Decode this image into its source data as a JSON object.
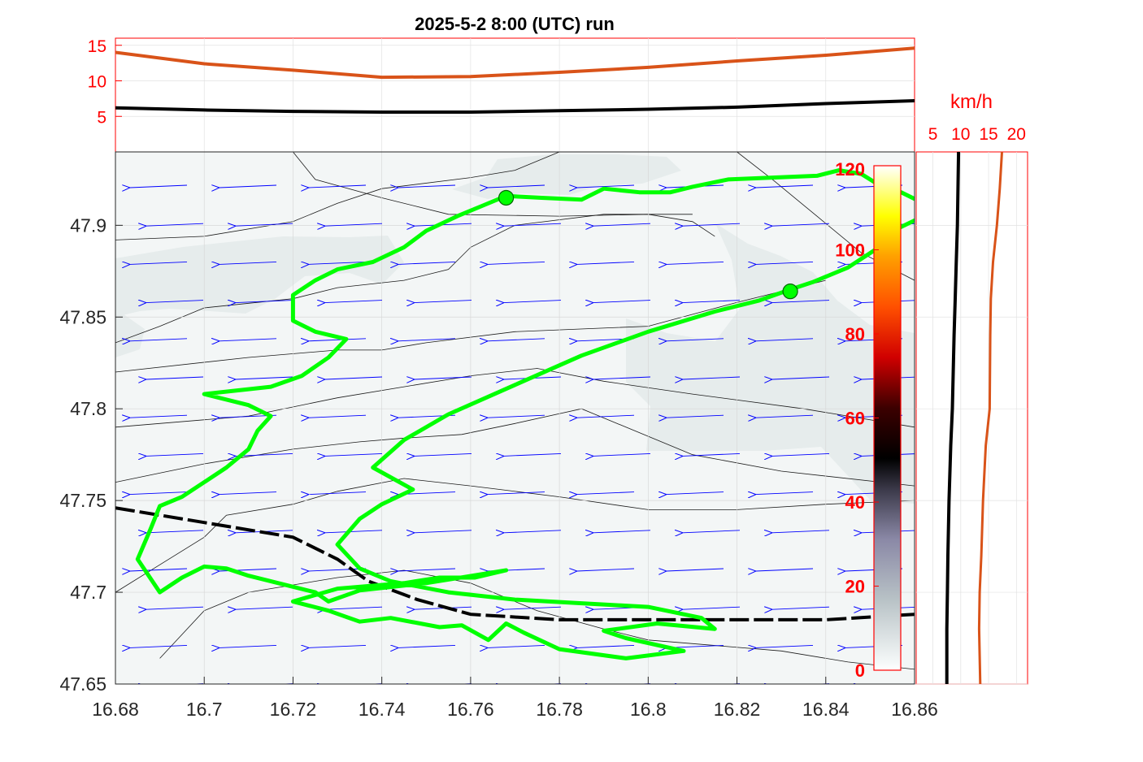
{
  "title": "2025-5-2  8:00 (UTC) run",
  "colors": {
    "track": "#00ff00",
    "arrows": "#0000ff",
    "speed_line": "#000000",
    "gust_line": "#d95319",
    "axis_red": "#ff0000"
  },
  "chart_data": [
    {
      "id": "wind_timeseries_top",
      "type": "line",
      "ylim": [
        0,
        16
      ],
      "yticks": [
        "5",
        "10",
        "15"
      ],
      "x": [
        16.68,
        16.7,
        16.72,
        16.74,
        16.76,
        16.78,
        16.8,
        16.82,
        16.84,
        16.86
      ],
      "series": [
        {
          "color": "#d95319",
          "values": [
            14.0,
            12.4,
            11.5,
            10.5,
            10.6,
            11.2,
            11.9,
            12.8,
            13.6,
            14.6
          ]
        },
        {
          "color": "#000000",
          "values": [
            6.2,
            5.9,
            5.7,
            5.6,
            5.6,
            5.8,
            6.0,
            6.3,
            6.8,
            7.2
          ]
        }
      ]
    },
    {
      "id": "map_main",
      "type": "line",
      "xlim": [
        16.68,
        16.86
      ],
      "ylim": [
        47.65,
        47.94
      ],
      "xticks": [
        "16.68",
        "16.7",
        "16.72",
        "16.74",
        "16.76",
        "16.78",
        "16.8",
        "16.82",
        "16.84",
        "16.86"
      ],
      "yticks": [
        "47.65",
        "47.7",
        "47.75",
        "47.8",
        "47.85",
        "47.9"
      ],
      "track": [
        [
          16.768,
          47.916
        ],
        [
          16.776,
          47.915
        ],
        [
          16.785,
          47.914
        ],
        [
          16.79,
          47.92
        ],
        [
          16.798,
          47.918
        ],
        [
          16.805,
          47.918
        ],
        [
          16.81,
          47.921
        ],
        [
          16.818,
          47.925
        ],
        [
          16.828,
          47.926
        ],
        [
          16.838,
          47.927
        ],
        [
          16.843,
          47.93
        ],
        [
          16.848,
          47.928
        ],
        [
          16.852,
          47.922
        ],
        [
          16.857,
          47.918
        ],
        [
          16.862,
          47.912
        ],
        [
          16.862,
          47.905
        ],
        [
          16.856,
          47.898
        ],
        [
          16.852,
          47.888
        ],
        [
          16.845,
          47.877
        ],
        [
          16.837,
          47.869
        ],
        [
          16.832,
          47.865
        ],
        [
          16.825,
          47.859
        ],
        [
          16.815,
          47.853
        ],
        [
          16.8,
          47.842
        ],
        [
          16.785,
          47.829
        ],
        [
          16.77,
          47.813
        ],
        [
          16.755,
          47.797
        ],
        [
          16.745,
          47.783
        ],
        [
          16.738,
          47.768
        ],
        [
          16.747,
          47.756
        ],
        [
          16.74,
          47.748
        ],
        [
          16.735,
          47.74
        ],
        [
          16.73,
          47.726
        ],
        [
          16.735,
          47.713
        ],
        [
          16.742,
          47.706
        ],
        [
          16.755,
          47.7
        ],
        [
          16.77,
          47.696
        ],
        [
          16.785,
          47.694
        ],
        [
          16.8,
          47.692
        ],
        [
          16.812,
          47.686
        ],
        [
          16.815,
          47.68
        ],
        [
          16.802,
          47.683
        ],
        [
          16.79,
          47.679
        ],
        [
          16.795,
          47.675
        ],
        [
          16.808,
          47.668
        ],
        [
          16.795,
          47.664
        ],
        [
          16.78,
          47.669
        ],
        [
          16.772,
          47.678
        ],
        [
          16.768,
          47.683
        ],
        [
          16.764,
          47.674
        ],
        [
          16.758,
          47.682
        ],
        [
          16.753,
          47.681
        ],
        [
          16.742,
          47.686
        ],
        [
          16.735,
          47.684
        ],
        [
          16.728,
          47.69
        ],
        [
          16.72,
          47.695
        ],
        [
          16.73,
          47.702
        ],
        [
          16.745,
          47.705
        ],
        [
          16.753,
          47.708
        ],
        [
          16.761,
          47.708
        ],
        [
          16.768,
          47.712
        ],
        [
          16.75,
          47.705
        ],
        [
          16.735,
          47.701
        ],
        [
          16.728,
          47.695
        ],
        [
          16.725,
          47.7
        ],
        [
          16.72,
          47.703
        ],
        [
          16.71,
          47.709
        ],
        [
          16.705,
          47.713
        ],
        [
          16.7,
          47.714
        ],
        [
          16.695,
          47.708
        ],
        [
          16.69,
          47.7
        ],
        [
          16.685,
          47.718
        ],
        [
          16.688,
          47.735
        ],
        [
          16.69,
          47.747
        ],
        [
          16.695,
          47.752
        ],
        [
          16.7,
          47.76
        ],
        [
          16.705,
          47.768
        ],
        [
          16.71,
          47.778
        ],
        [
          16.712,
          47.788
        ],
        [
          16.715,
          47.796
        ],
        [
          16.71,
          47.802
        ],
        [
          16.7,
          47.808
        ],
        [
          16.715,
          47.812
        ],
        [
          16.722,
          47.818
        ],
        [
          16.728,
          47.828
        ],
        [
          16.732,
          47.838
        ],
        [
          16.725,
          47.842
        ],
        [
          16.72,
          47.848
        ],
        [
          16.72,
          47.862
        ],
        [
          16.725,
          47.87
        ],
        [
          16.73,
          47.876
        ],
        [
          16.738,
          47.88
        ],
        [
          16.745,
          47.888
        ],
        [
          16.75,
          47.897
        ],
        [
          16.757,
          47.905
        ],
        [
          16.763,
          47.911
        ],
        [
          16.768,
          47.916
        ]
      ],
      "markers": [
        [
          16.768,
          47.915
        ],
        [
          16.832,
          47.864
        ]
      ],
      "boundary": [
        [
          16.68,
          47.746
        ],
        [
          16.7,
          47.738
        ],
        [
          16.72,
          47.73
        ],
        [
          16.73,
          47.718
        ],
        [
          16.737,
          47.706
        ],
        [
          16.748,
          47.696
        ],
        [
          16.76,
          47.688
        ],
        [
          16.78,
          47.685
        ],
        [
          16.8,
          47.685
        ],
        [
          16.82,
          47.685
        ],
        [
          16.84,
          47.685
        ],
        [
          16.86,
          47.688
        ]
      ],
      "contours": [
        [
          [
            16.68,
            47.82
          ],
          [
            16.71,
            47.828
          ],
          [
            16.73,
            47.832
          ],
          [
            16.74,
            47.832
          ],
          [
            16.75,
            47.836
          ],
          [
            16.77,
            47.842
          ],
          [
            16.8,
            47.845
          ],
          [
            16.82,
            47.858
          ],
          [
            16.84,
            47.87
          ]
        ],
        [
          [
            16.68,
            47.79
          ],
          [
            16.71,
            47.796
          ],
          [
            16.73,
            47.806
          ],
          [
            16.745,
            47.812
          ],
          [
            16.76,
            47.818
          ],
          [
            16.775,
            47.822
          ],
          [
            16.79,
            47.815
          ],
          [
            16.81,
            47.808
          ],
          [
            16.835,
            47.8
          ],
          [
            16.86,
            47.79
          ]
        ],
        [
          [
            16.68,
            47.76
          ],
          [
            16.7,
            47.77
          ],
          [
            16.72,
            47.778
          ],
          [
            16.735,
            47.782
          ],
          [
            16.745,
            47.784
          ],
          [
            16.758,
            47.786
          ],
          [
            16.77,
            47.792
          ],
          [
            16.785,
            47.8
          ],
          [
            16.795,
            47.79
          ],
          [
            16.81,
            47.775
          ],
          [
            16.83,
            47.766
          ],
          [
            16.86,
            47.758
          ]
        ],
        [
          [
            16.68,
            47.7
          ],
          [
            16.69,
            47.715
          ],
          [
            16.7,
            47.73
          ],
          [
            16.705,
            47.742
          ],
          [
            16.72,
            47.748
          ],
          [
            16.73,
            47.755
          ],
          [
            16.745,
            47.762
          ],
          [
            16.76,
            47.758
          ],
          [
            16.78,
            47.752
          ],
          [
            16.8,
            47.745
          ],
          [
            16.82,
            47.745
          ],
          [
            16.84,
            47.748
          ],
          [
            16.86,
            47.75
          ]
        ],
        [
          [
            16.69,
            47.664
          ],
          [
            16.7,
            47.69
          ],
          [
            16.71,
            47.7
          ],
          [
            16.73,
            47.708
          ],
          [
            16.745,
            47.712
          ],
          [
            16.76,
            47.705
          ],
          [
            16.775,
            47.69
          ],
          [
            16.79,
            47.68
          ],
          [
            16.8,
            47.674
          ],
          [
            16.83,
            47.668
          ],
          [
            16.845,
            47.662
          ],
          [
            16.86,
            47.658
          ]
        ],
        [
          [
            16.82,
            47.94
          ],
          [
            16.828,
            47.925
          ],
          [
            16.838,
            47.905
          ],
          [
            16.848,
            47.885
          ],
          [
            16.86,
            47.87
          ]
        ],
        [
          [
            16.72,
            47.94
          ],
          [
            16.725,
            47.925
          ],
          [
            16.74,
            47.915
          ],
          [
            16.755,
            47.906
          ],
          [
            16.78,
            47.905
          ],
          [
            16.8,
            47.906
          ],
          [
            16.81,
            47.902
          ],
          [
            16.815,
            47.894
          ]
        ],
        [
          [
            16.68,
            47.892
          ],
          [
            16.7,
            47.894
          ],
          [
            16.72,
            47.902
          ],
          [
            16.73,
            47.912
          ],
          [
            16.74,
            47.92
          ],
          [
            16.76,
            47.926
          ],
          [
            16.77,
            47.93
          ],
          [
            16.78,
            47.94
          ]
        ],
        [
          [
            16.68,
            47.836
          ],
          [
            16.69,
            47.845
          ],
          [
            16.7,
            47.855
          ],
          [
            16.72,
            47.86
          ],
          [
            16.73,
            47.866
          ],
          [
            16.745,
            47.87
          ],
          [
            16.755,
            47.876
          ],
          [
            16.76,
            47.888
          ],
          [
            16.77,
            47.9
          ],
          [
            16.79,
            47.906
          ],
          [
            16.81,
            47.906
          ]
        ]
      ]
    },
    {
      "id": "colorbar",
      "type": "heatmap",
      "ylim": [
        0,
        120
      ],
      "ticks": [
        "0",
        "20",
        "40",
        "60",
        "80",
        "100",
        "120"
      ]
    },
    {
      "id": "wind_profile_right",
      "type": "line",
      "units": "km/h",
      "xlim": [
        2,
        22
      ],
      "xticks": [
        "5",
        "10",
        "15",
        "20"
      ],
      "y": [
        47.65,
        47.68,
        47.7,
        47.72,
        47.75,
        47.78,
        47.8,
        47.84,
        47.86,
        47.88,
        47.9,
        47.92,
        47.94
      ],
      "series": [
        {
          "color": "#000000",
          "values": [
            7.5,
            7.5,
            7.6,
            7.7,
            7.9,
            8.2,
            8.5,
            8.8,
            9.0,
            9.2,
            9.4,
            9.5,
            9.6
          ]
        },
        {
          "color": "#d95319",
          "values": [
            13.5,
            13.3,
            13.4,
            13.7,
            14.0,
            14.5,
            15.2,
            15.3,
            15.4,
            15.8,
            16.5,
            17.0,
            17.4
          ]
        }
      ]
    }
  ]
}
